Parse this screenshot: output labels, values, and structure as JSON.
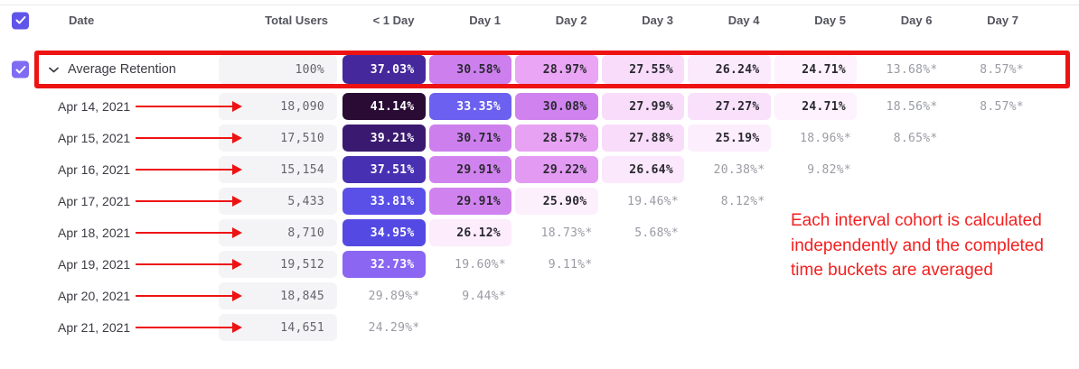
{
  "colors": {
    "select_all_checkbox": "#5f55e9",
    "row_checkbox": "#7e6cf2",
    "highlight_red": "#ee1313",
    "annotation_red": "#f32020",
    "pill_neutral": "#f4f4f6"
  },
  "header": {
    "columns": [
      "Date",
      "Total Users",
      "< 1 Day",
      "Day 1",
      "Day 2",
      "Day 3",
      "Day 4",
      "Day 5",
      "Day 6",
      "Day 7"
    ]
  },
  "average_row": {
    "label": "Average Retention",
    "total": "100%",
    "cells": [
      {
        "v": "37.03%",
        "bg": "#45289c",
        "fg": "white"
      },
      {
        "v": "30.58%",
        "bg": "#cd7fee",
        "fg": "dark"
      },
      {
        "v": "28.97%",
        "bg": "#eaa5f4",
        "fg": "dark"
      },
      {
        "v": "27.55%",
        "bg": "#f8dcfa",
        "fg": "dark"
      },
      {
        "v": "26.24%",
        "bg": "#fbe9fc",
        "fg": "dark"
      },
      {
        "v": "24.71%",
        "bg": "#fdf2fd",
        "fg": "dark"
      },
      {
        "v": "13.68%*",
        "fg": "gray"
      },
      {
        "v": "8.57%*",
        "fg": "gray"
      }
    ]
  },
  "rows": [
    {
      "date": "Apr 14, 2021",
      "total": "18,090",
      "cells": [
        {
          "v": "41.14%",
          "bg": "#2a0b34",
          "fg": "white"
        },
        {
          "v": "33.35%",
          "bg": "#6b60ef",
          "fg": "white"
        },
        {
          "v": "30.08%",
          "bg": "#d083ee",
          "fg": "dark"
        },
        {
          "v": "27.99%",
          "bg": "#f8dcfa",
          "fg": "dark"
        },
        {
          "v": "27.27%",
          "bg": "#f9e0fb",
          "fg": "dark"
        },
        {
          "v": "24.71%",
          "bg": "#fdf2fd",
          "fg": "dark"
        },
        {
          "v": "18.56%*",
          "fg": "gray"
        },
        {
          "v": "8.57%*",
          "fg": "gray"
        }
      ]
    },
    {
      "date": "Apr 15, 2021",
      "total": "17,510",
      "cells": [
        {
          "v": "39.21%",
          "bg": "#3a1a70",
          "fg": "white"
        },
        {
          "v": "30.71%",
          "bg": "#cd7fee",
          "fg": "dark"
        },
        {
          "v": "28.57%",
          "bg": "#e8a2f3",
          "fg": "dark"
        },
        {
          "v": "27.88%",
          "bg": "#f8dcfa",
          "fg": "dark"
        },
        {
          "v": "25.19%",
          "bg": "#fdeefd",
          "fg": "dark"
        },
        {
          "v": "18.96%*",
          "fg": "gray"
        },
        {
          "v": "8.65%*",
          "fg": "gray"
        },
        null
      ]
    },
    {
      "date": "Apr 16, 2021",
      "total": "15,154",
      "cells": [
        {
          "v": "37.51%",
          "bg": "#4731b2",
          "fg": "white"
        },
        {
          "v": "29.91%",
          "bg": "#d083ee",
          "fg": "dark"
        },
        {
          "v": "29.22%",
          "bg": "#e29af3",
          "fg": "dark"
        },
        {
          "v": "26.64%",
          "bg": "#fbe8fc",
          "fg": "dark"
        },
        {
          "v": "20.38%*",
          "fg": "gray"
        },
        {
          "v": "9.82%*",
          "fg": "gray"
        },
        null,
        null
      ]
    },
    {
      "date": "Apr 17, 2021",
      "total": "5,433",
      "cells": [
        {
          "v": "33.81%",
          "bg": "#5a50e8",
          "fg": "white"
        },
        {
          "v": "29.91%",
          "bg": "#d083ee",
          "fg": "dark"
        },
        {
          "v": "25.90%",
          "bg": "#fdf0fd",
          "fg": "dark"
        },
        {
          "v": "19.46%*",
          "fg": "gray"
        },
        {
          "v": "8.12%*",
          "fg": "gray"
        },
        null,
        null,
        null
      ]
    },
    {
      "date": "Apr 18, 2021",
      "total": "8,710",
      "cells": [
        {
          "v": "34.95%",
          "bg": "#544ae3",
          "fg": "white"
        },
        {
          "v": "26.12%",
          "bg": "#fcecfc",
          "fg": "dark"
        },
        {
          "v": "18.73%*",
          "fg": "gray"
        },
        {
          "v": "5.68%*",
          "fg": "gray"
        },
        null,
        null,
        null,
        null
      ]
    },
    {
      "date": "Apr 19, 2021",
      "total": "19,512",
      "cells": [
        {
          "v": "32.73%",
          "bg": "#8a66f3",
          "fg": "white"
        },
        {
          "v": "19.60%*",
          "fg": "gray"
        },
        {
          "v": "9.11%*",
          "fg": "gray"
        },
        null,
        null,
        null,
        null,
        null
      ]
    },
    {
      "date": "Apr 20, 2021",
      "total": "18,845",
      "cells": [
        {
          "v": "29.89%*",
          "fg": "gray"
        },
        {
          "v": "9.44%*",
          "fg": "gray"
        },
        null,
        null,
        null,
        null,
        null,
        null
      ]
    },
    {
      "date": "Apr 21, 2021",
      "total": "14,651",
      "cells": [
        {
          "v": "24.29%*",
          "fg": "gray"
        },
        null,
        null,
        null,
        null,
        null,
        null,
        null
      ]
    }
  ],
  "annotation": {
    "text": "Each interval cohort is calculated independently and the completed time buckets are averaged"
  }
}
